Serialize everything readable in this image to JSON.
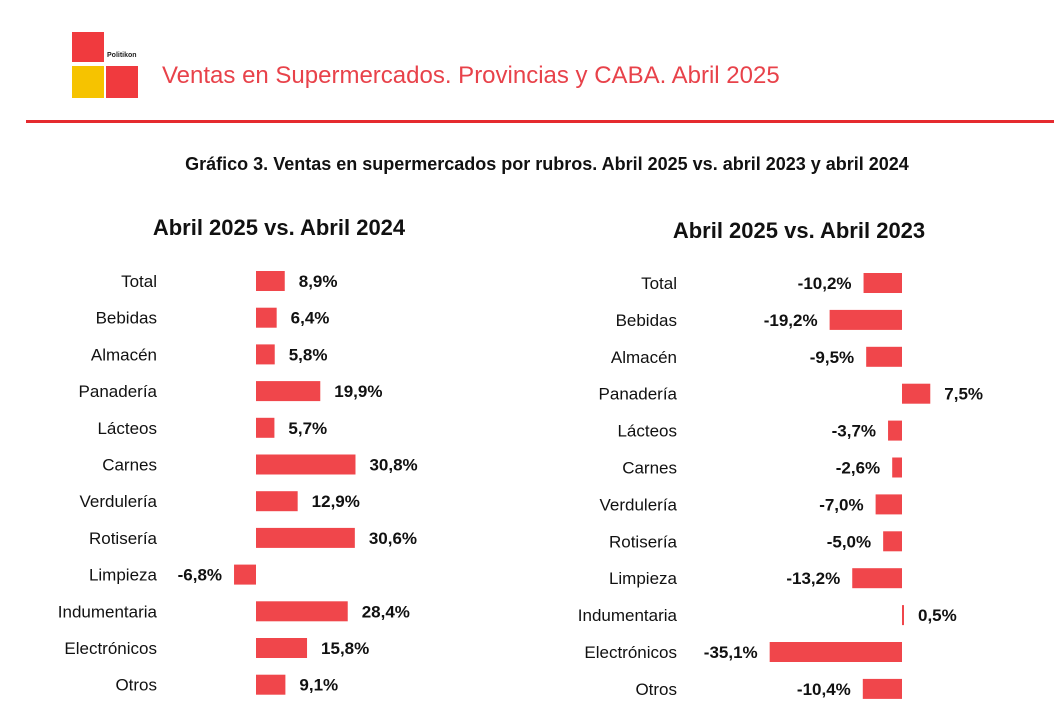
{
  "header": {
    "brand": "Politikon",
    "title": "Ventas en Supermercados. Provincias y CABA. Abril 2025",
    "logo_colors": {
      "top_left": "#f03a3e",
      "bottom_left": "#f6c300",
      "bottom_right": "#f03a3e"
    },
    "rule_color": "#e52a2f"
  },
  "bar_color": "#f0464b",
  "chart_data": [
    {
      "type": "bar",
      "orientation": "horizontal",
      "title": "Gráfico 3. Ventas en supermercados por rubros. Abril 2025 vs. abril 2023 y abril 2024",
      "subtitle": "Abril 2025 vs. Abril 2024",
      "categories": [
        "Total",
        "Bebidas",
        "Almacén",
        "Panadería",
        "Lácteos",
        "Carnes",
        "Verdulería",
        "Rotisería",
        "Limpieza",
        "Indumentaria",
        "Electrónicos",
        "Otros"
      ],
      "values": [
        8.9,
        6.4,
        5.8,
        19.9,
        5.7,
        30.8,
        12.9,
        30.6,
        -6.8,
        28.4,
        15.8,
        9.1
      ],
      "value_labels": [
        "8,9%",
        "6,4%",
        "5,8%",
        "19,9%",
        "5,7%",
        "30,8%",
        "12,9%",
        "30,6%",
        "-6,8%",
        "28,4%",
        "15,8%",
        "9,1%"
      ],
      "unit": "%",
      "grid": false
    },
    {
      "type": "bar",
      "orientation": "horizontal",
      "subtitle": "Abril 2025 vs. Abril 2023",
      "categories": [
        "Total",
        "Bebidas",
        "Almacén",
        "Panadería",
        "Lácteos",
        "Carnes",
        "Verdulería",
        "Rotisería",
        "Limpieza",
        "Indumentaria",
        "Electrónicos",
        "Otros"
      ],
      "values": [
        -10.2,
        -19.2,
        -9.5,
        7.5,
        -3.7,
        -2.6,
        -7.0,
        -5.0,
        -13.2,
        0.5,
        -35.1,
        -10.4
      ],
      "value_labels": [
        "-10,2%",
        "-19,2%",
        "-9,5%",
        "7,5%",
        "-3,7%",
        "-2,6%",
        "-7,0%",
        "-5,0%",
        "-13,2%",
        "0,5%",
        "-35,1%",
        "-10,4%"
      ],
      "unit": "%",
      "grid": false
    }
  ]
}
